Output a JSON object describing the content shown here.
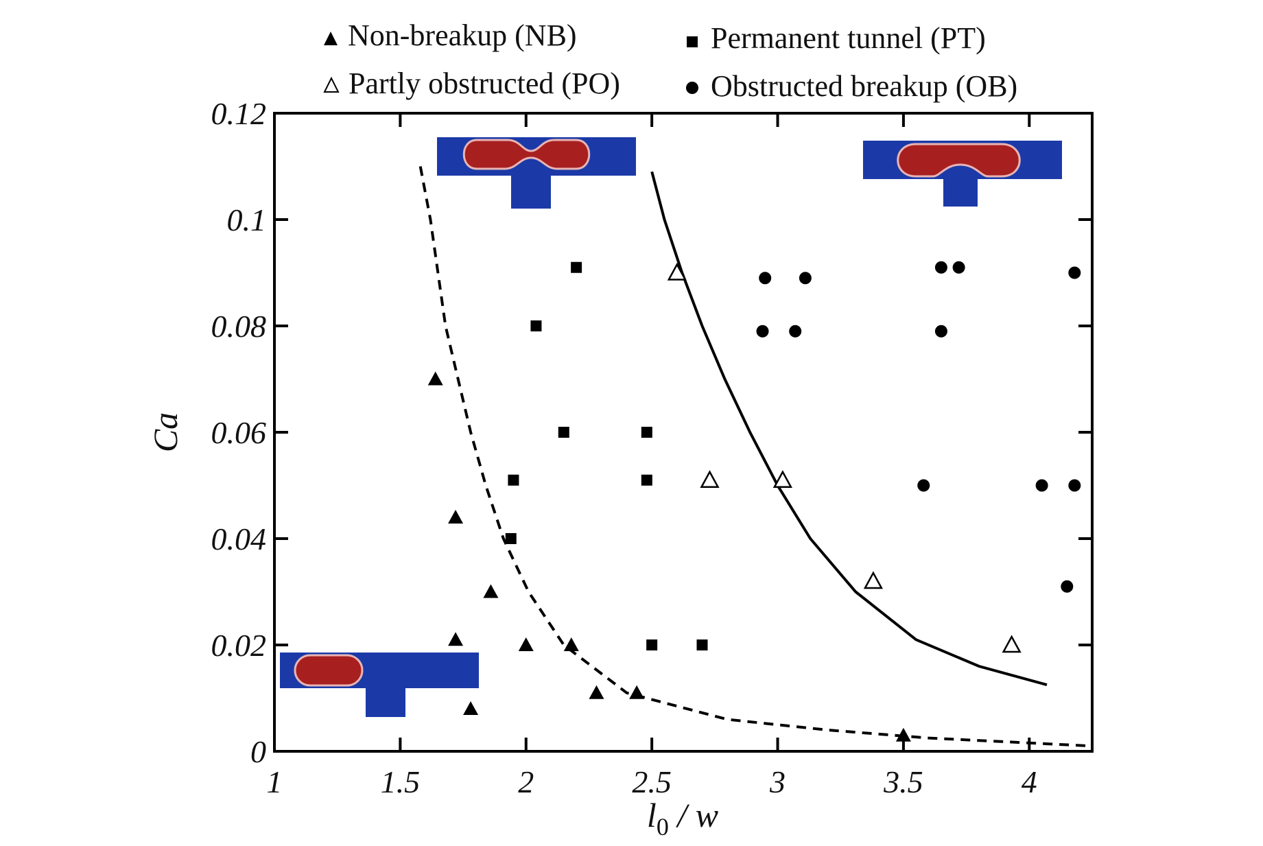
{
  "chart_data": {
    "type": "scatter",
    "xlabel": "l0 / w",
    "xlabel_main": "l",
    "xlabel_sub": "0",
    "xlabel_rest": " / w",
    "ylabel": "Ca",
    "xlim": [
      1,
      4.25
    ],
    "ylim": [
      0,
      0.12
    ],
    "x_ticks": [
      1,
      1.5,
      2,
      2.5,
      3,
      3.5,
      4
    ],
    "x_tick_labels": [
      "1",
      "1.5",
      "2",
      "2.5",
      "3",
      "3.5",
      "4"
    ],
    "y_ticks": [
      0,
      0.02,
      0.04,
      0.06,
      0.08,
      0.1,
      0.12
    ],
    "y_tick_labels": [
      "0",
      "0.02",
      "0.04",
      "0.06",
      "0.08",
      "0.1",
      "0.12"
    ],
    "grid": false,
    "legend_position": "top",
    "legend_items": [
      {
        "label": "Non-breakup (NB)",
        "marker": "filled-triangle"
      },
      {
        "label": "Permanent tunnel (PT)",
        "marker": "filled-square"
      },
      {
        "label": "Partly obstructed (PO)",
        "marker": "open-triangle"
      },
      {
        "label": "Obstructed breakup (OB)",
        "marker": "filled-circle"
      }
    ],
    "series": [
      {
        "name": "Non-breakup (NB)",
        "marker": "filled-triangle",
        "points": [
          [
            1.64,
            0.07
          ],
          [
            1.72,
            0.044
          ],
          [
            1.86,
            0.03
          ],
          [
            1.72,
            0.021
          ],
          [
            1.78,
            0.008
          ],
          [
            2.0,
            0.02
          ],
          [
            2.18,
            0.02
          ],
          [
            2.28,
            0.011
          ],
          [
            2.44,
            0.011
          ],
          [
            3.5,
            0.003
          ]
        ]
      },
      {
        "name": "Permanent tunnel (PT)",
        "marker": "filled-square",
        "points": [
          [
            2.2,
            0.091
          ],
          [
            2.04,
            0.08
          ],
          [
            2.15,
            0.06
          ],
          [
            2.48,
            0.06
          ],
          [
            1.95,
            0.051
          ],
          [
            2.48,
            0.051
          ],
          [
            1.94,
            0.04
          ],
          [
            2.5,
            0.02
          ],
          [
            2.7,
            0.02
          ]
        ]
      },
      {
        "name": "Partly obstructed (PO)",
        "marker": "open-triangle",
        "points": [
          [
            2.6,
            0.09
          ],
          [
            2.73,
            0.051
          ],
          [
            3.02,
            0.051
          ],
          [
            3.38,
            0.032
          ],
          [
            3.93,
            0.02
          ]
        ]
      },
      {
        "name": "Obstructed breakup (OB)",
        "marker": "filled-circle",
        "points": [
          [
            2.95,
            0.089
          ],
          [
            3.11,
            0.089
          ],
          [
            3.65,
            0.091
          ],
          [
            3.72,
            0.091
          ],
          [
            4.18,
            0.09
          ],
          [
            2.94,
            0.079
          ],
          [
            3.07,
            0.079
          ],
          [
            3.65,
            0.079
          ],
          [
            3.58,
            0.05
          ],
          [
            4.05,
            0.05
          ],
          [
            4.18,
            0.05
          ],
          [
            4.15,
            0.031
          ]
        ]
      }
    ],
    "curves": [
      {
        "style": "dashed",
        "points": [
          [
            1.58,
            0.11
          ],
          [
            1.62,
            0.1
          ],
          [
            1.65,
            0.09
          ],
          [
            1.68,
            0.08
          ],
          [
            1.73,
            0.07
          ],
          [
            1.78,
            0.06
          ],
          [
            1.84,
            0.05
          ],
          [
            1.91,
            0.04
          ],
          [
            2.01,
            0.03
          ],
          [
            2.15,
            0.02
          ],
          [
            2.4,
            0.011
          ],
          [
            2.8,
            0.006
          ],
          [
            3.2,
            0.004
          ],
          [
            3.6,
            0.0025
          ],
          [
            4.25,
            0.001
          ]
        ]
      },
      {
        "style": "solid",
        "points": [
          [
            2.5,
            0.109
          ],
          [
            2.55,
            0.1
          ],
          [
            2.62,
            0.09
          ],
          [
            2.7,
            0.08
          ],
          [
            2.79,
            0.07
          ],
          [
            2.89,
            0.06
          ],
          [
            3.0,
            0.05
          ],
          [
            3.13,
            0.04
          ],
          [
            3.31,
            0.03
          ],
          [
            3.55,
            0.021
          ],
          [
            3.8,
            0.016
          ],
          [
            4.07,
            0.0125
          ]
        ]
      }
    ],
    "colors": {
      "channel": "#1b3aa8",
      "droplet": "#a81f1f",
      "droplet_edge": "#e8b4b4",
      "ink": "#000000"
    }
  }
}
